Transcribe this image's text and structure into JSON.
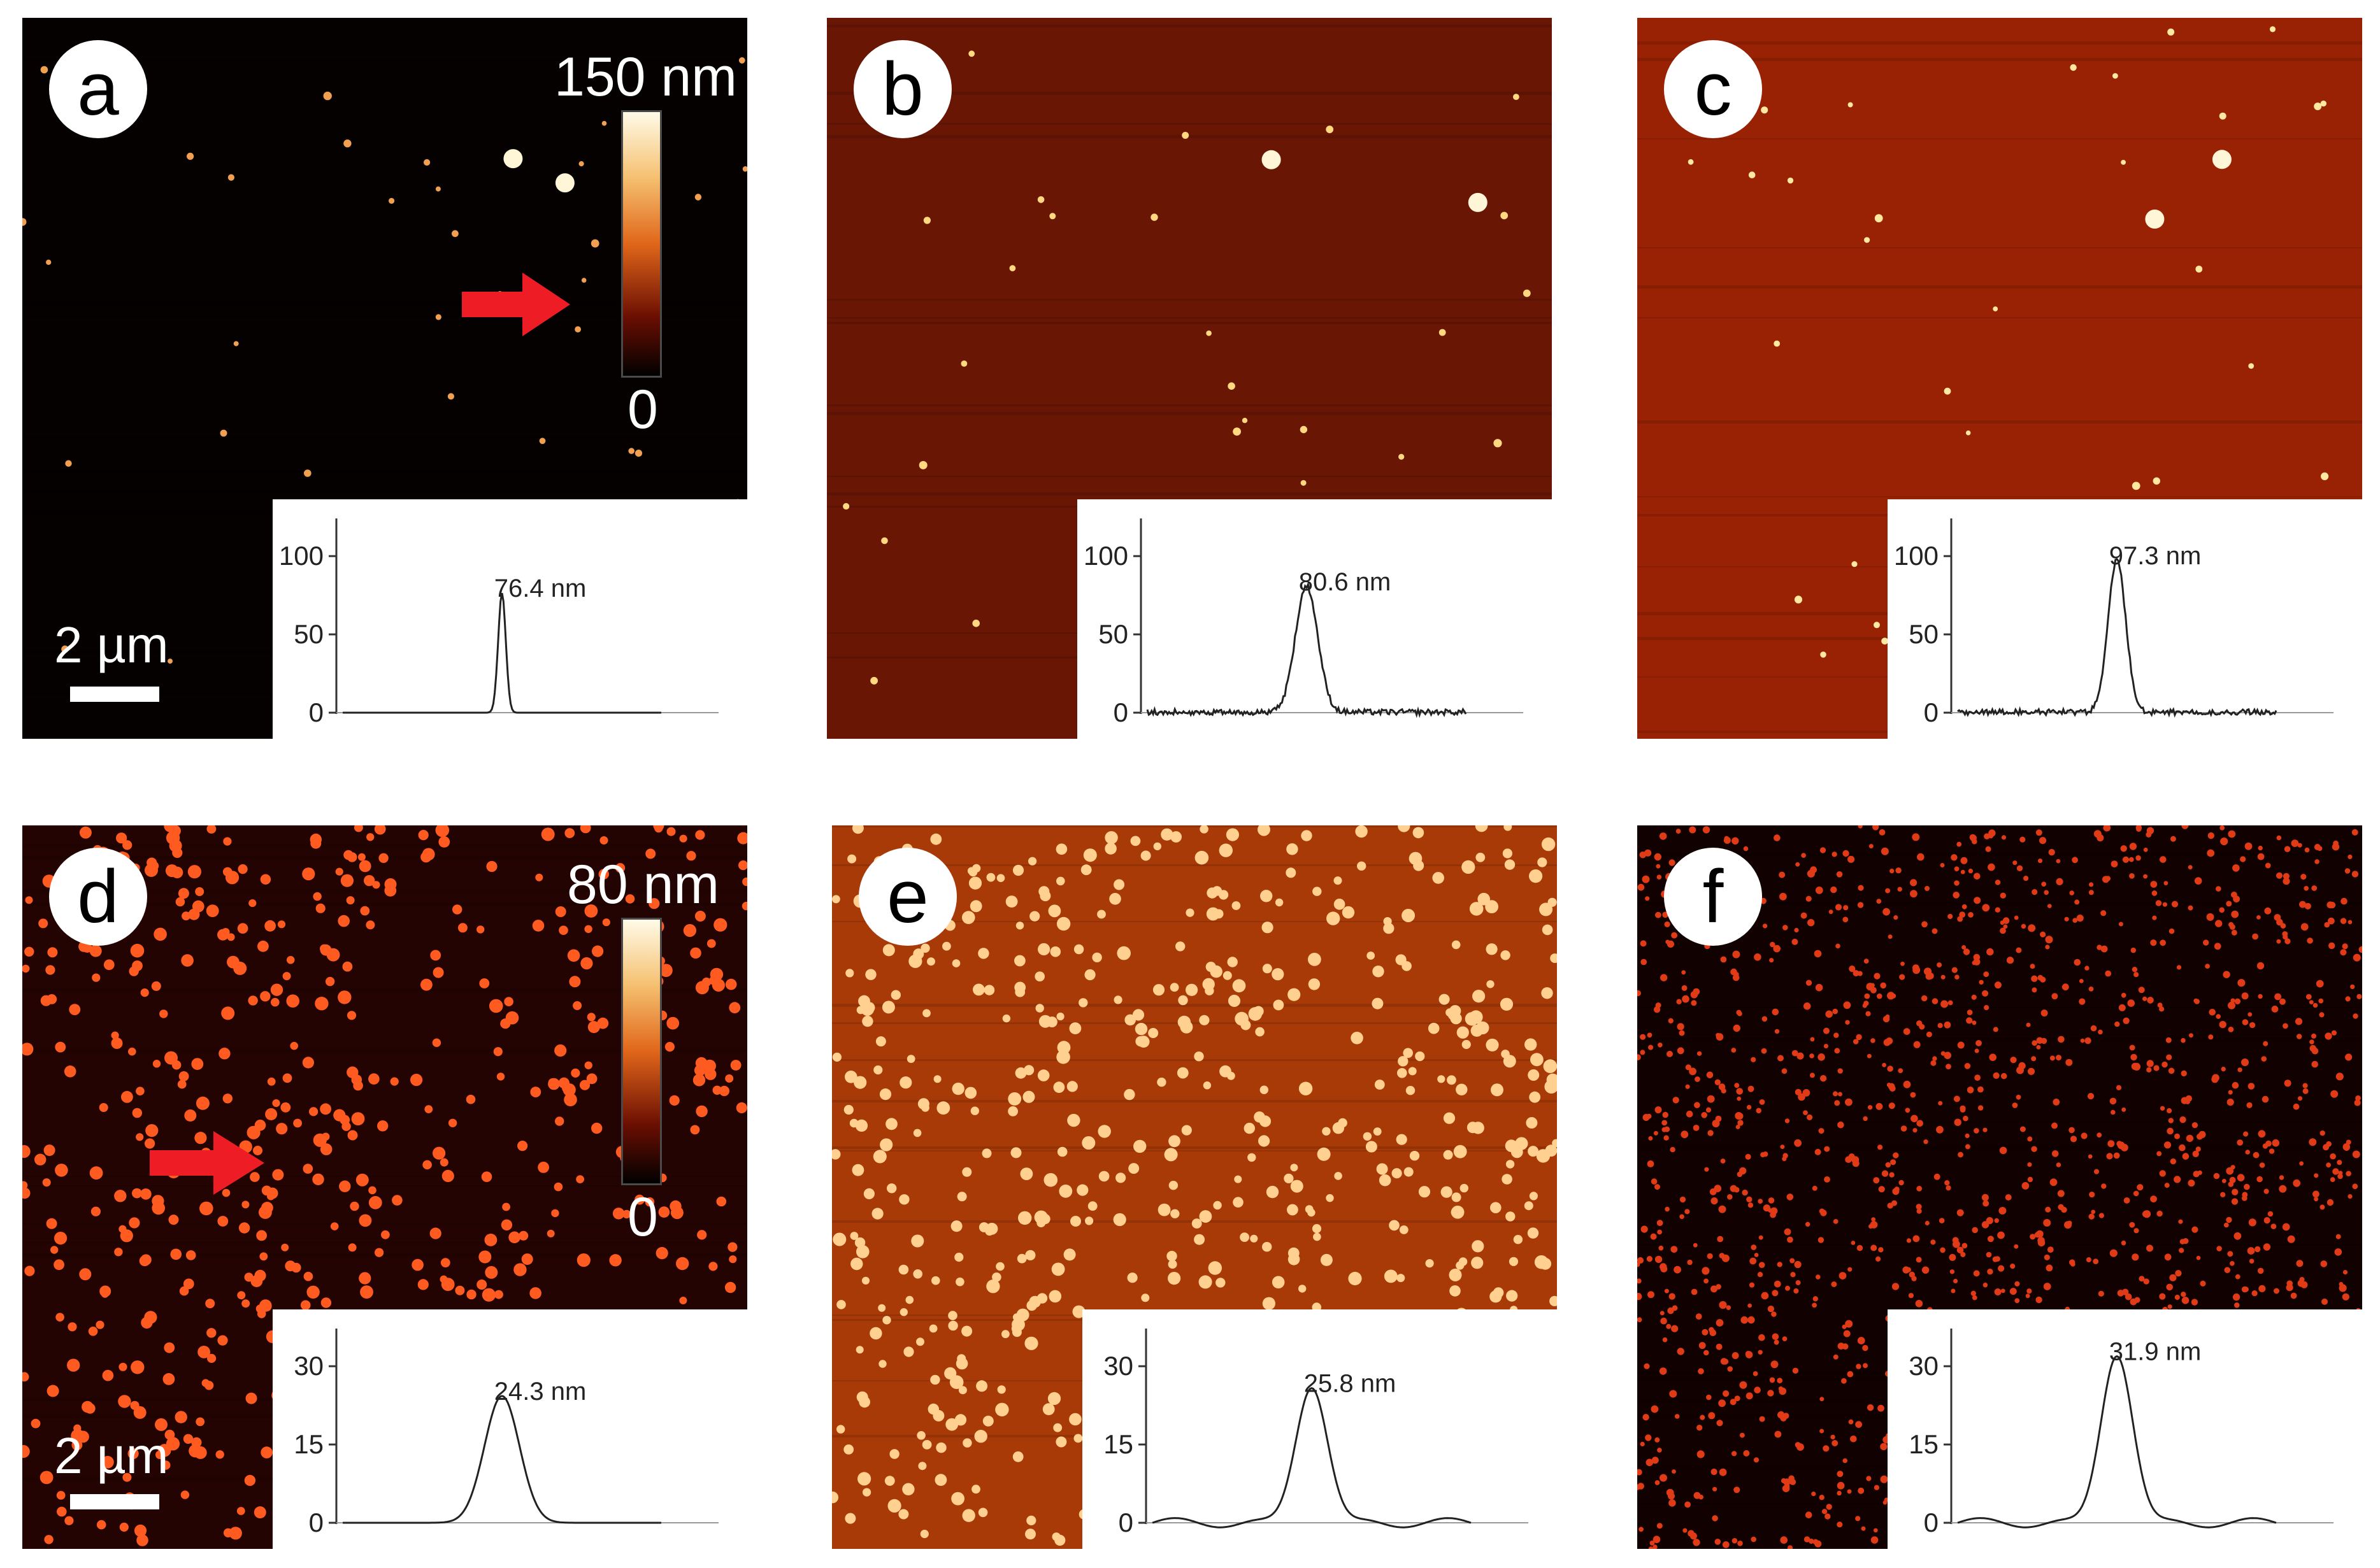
{
  "panels": [
    {
      "id": "a",
      "label": "a",
      "bg": "#060101",
      "dot": "#f0a050",
      "density": "sparse",
      "colorbar": {
        "max_label": "150 nm",
        "min_label": "0"
      },
      "scalebar": "2 µm",
      "arrow": true,
      "profile": {
        "label": "76.4 nm",
        "yticks": [
          "100",
          "50",
          "0"
        ],
        "ymax": 120,
        "peak_value": 76.4,
        "shape": "narrow"
      }
    },
    {
      "id": "b",
      "label": "b",
      "bg": "#6a1604",
      "dot": "#ffd880",
      "density": "sparse",
      "profile": {
        "label": "80.6 nm",
        "yticks": [
          "100",
          "50",
          "0"
        ],
        "ymax": 120,
        "peak_value": 80.6,
        "shape": "medium-noisy"
      }
    },
    {
      "id": "c",
      "label": "c",
      "bg": "#9a2204",
      "dot": "#ffe8a0",
      "density": "sparse",
      "profile": {
        "label": "97.3 nm",
        "yticks": [
          "100",
          "50",
          "0"
        ],
        "ymax": 120,
        "peak_value": 97.3,
        "shape": "narrow-noisy"
      }
    },
    {
      "id": "d",
      "label": "d",
      "bg": "#240402",
      "dot": "#ff5a20",
      "density": "dense",
      "colorbar": {
        "max_label": "80 nm",
        "min_label": "0"
      },
      "scalebar": "2 µm",
      "arrow": true,
      "profile": {
        "label": "24.3 nm",
        "yticks": [
          "30",
          "15",
          "0"
        ],
        "ymax": 36,
        "peak_value": 24.3,
        "shape": "smooth"
      }
    },
    {
      "id": "e",
      "label": "e",
      "bg": "#a83a08",
      "dot": "#ffd090",
      "density": "dense",
      "profile": {
        "label": "25.8 nm",
        "yticks": [
          "30",
          "15",
          "0"
        ],
        "ymax": 36,
        "peak_value": 25.8,
        "shape": "smooth-wavy"
      }
    },
    {
      "id": "f",
      "label": "f",
      "bg": "#120101",
      "dot": "#e03a16",
      "density": "very-dense",
      "profile": {
        "label": "31.9 nm",
        "yticks": [
          "30",
          "15",
          "0"
        ],
        "ymax": 36,
        "peak_value": 31.9,
        "shape": "smooth-wavy"
      }
    }
  ],
  "colors": {
    "arrow": "#ee1c25",
    "colorbar_top": "#fffbe8",
    "colorbar_mid": "#e0661a",
    "colorbar_bottom": "#000000"
  }
}
